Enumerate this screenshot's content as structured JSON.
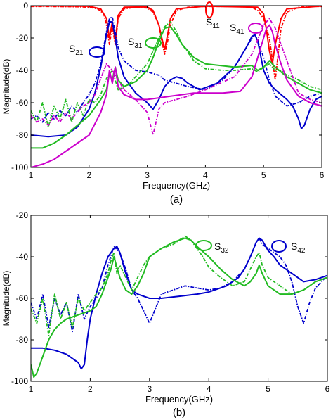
{
  "chart_data": [
    {
      "panel_label": "(a)",
      "type": "line",
      "xlabel": "Frequency(GHz)",
      "ylabel": "Magnitude(dB)",
      "xlim": [
        1,
        6
      ],
      "ylim": [
        -100,
        0
      ],
      "xticks": [
        "1",
        "2",
        "3",
        "4",
        "5",
        "6"
      ],
      "yticks": [
        "0",
        "-20",
        "-40",
        "-60",
        "-80",
        "-100"
      ],
      "grid": false,
      "annotations": [
        {
          "label": "S",
          "sub": "11",
          "series": "S11"
        },
        {
          "label": "S",
          "sub": "21",
          "series": "S21"
        },
        {
          "label": "S",
          "sub": "31",
          "series": "S31"
        },
        {
          "label": "S",
          "sub": "41",
          "series": "S41"
        }
      ],
      "series": [
        {
          "id": "S11",
          "style": "measured",
          "color": "#ff0000",
          "x": [
            1.0,
            1.2,
            1.5,
            1.8,
            2.0,
            2.15,
            2.25,
            2.3,
            2.35,
            2.4,
            2.45,
            2.5,
            2.6,
            2.8,
            3.0,
            3.1,
            3.2,
            3.25,
            3.3,
            3.35,
            3.4,
            3.5,
            3.7,
            4.0,
            4.5,
            4.8,
            4.9,
            5.0,
            5.1,
            5.15,
            5.2,
            5.25,
            5.3,
            5.4,
            5.6,
            5.8,
            6.0
          ],
          "y": [
            -0.5,
            -0.5,
            -0.6,
            -0.7,
            -1,
            -2,
            -5,
            -12,
            -24,
            -13,
            -24,
            -8,
            -2,
            -1,
            -1.5,
            -4,
            -12,
            -22,
            -30,
            -22,
            -12,
            -3,
            -1,
            -0.5,
            -0.5,
            -1,
            -3,
            -8,
            -20,
            -33,
            -46,
            -30,
            -14,
            -4,
            -1,
            -0.5,
            -0.5
          ]
        },
        {
          "id": "S11",
          "style": "simulated",
          "color": "#ff0000",
          "x": [
            1.0,
            1.5,
            2.0,
            2.2,
            2.3,
            2.35,
            2.4,
            2.45,
            2.5,
            2.6,
            3.0,
            3.1,
            3.2,
            3.25,
            3.3,
            3.35,
            3.4,
            3.5,
            4.0,
            4.9,
            5.0,
            5.05,
            5.1,
            5.15,
            5.2,
            5.3,
            5.4,
            6.0
          ],
          "y": [
            -0.2,
            -0.2,
            -0.4,
            -2,
            -8,
            -20,
            -10,
            -22,
            -6,
            -1,
            -0.8,
            -3,
            -12,
            -20,
            -27,
            -18,
            -8,
            -2,
            -0.3,
            -1,
            -5,
            -15,
            -28,
            -36,
            -24,
            -8,
            -2,
            -0.2
          ]
        },
        {
          "id": "S21",
          "style": "measured",
          "color": "#0000cc",
          "x": [
            1.0,
            1.1,
            1.2,
            1.3,
            1.4,
            1.5,
            1.6,
            1.7,
            1.8,
            1.9,
            2.0,
            2.1,
            2.2,
            2.25,
            2.3,
            2.35,
            2.4,
            2.45,
            2.5,
            2.6,
            2.8,
            3.0,
            3.1,
            3.2,
            3.3,
            3.5,
            3.7,
            4.0,
            4.3,
            4.5,
            4.7,
            4.8,
            4.85,
            4.9,
            5.0,
            5.1,
            5.2,
            5.4,
            5.6,
            5.8,
            6.0
          ],
          "y": [
            -70,
            -68,
            -72,
            -66,
            -70,
            -65,
            -68,
            -62,
            -66,
            -60,
            -55,
            -48,
            -36,
            -26,
            -16,
            -8,
            -7,
            -16,
            -26,
            -34,
            -40,
            -41,
            -42,
            -43,
            -46,
            -48,
            -50,
            -52,
            -46,
            -38,
            -26,
            -20,
            -18,
            -21,
            -32,
            -46,
            -56,
            -62,
            -60,
            -56,
            -54
          ]
        },
        {
          "id": "S21",
          "style": "simulated",
          "color": "#0000cc",
          "x": [
            1.0,
            1.3,
            1.6,
            1.8,
            2.0,
            2.1,
            2.2,
            2.25,
            2.3,
            2.35,
            2.4,
            2.45,
            2.5,
            2.6,
            2.8,
            3.0,
            3.1,
            3.2,
            3.3,
            3.4,
            3.5,
            3.6,
            3.7,
            3.9,
            4.2,
            4.5,
            4.7,
            4.8,
            4.85,
            4.9,
            5.0,
            5.1,
            5.2,
            5.4,
            5.5,
            5.6,
            5.65,
            5.7,
            5.8,
            5.9,
            6.0
          ],
          "y": [
            -80,
            -81,
            -80,
            -75,
            -64,
            -54,
            -38,
            -28,
            -18,
            -10,
            -10,
            -20,
            -32,
            -44,
            -54,
            -60,
            -64,
            -58,
            -50,
            -46,
            -44,
            -45,
            -48,
            -52,
            -48,
            -38,
            -26,
            -19,
            -18,
            -22,
            -40,
            -48,
            -52,
            -58,
            -62,
            -70,
            -76,
            -74,
            -64,
            -58,
            -56
          ]
        },
        {
          "id": "S31",
          "style": "measured",
          "color": "#22bb22",
          "x": [
            1.0,
            1.1,
            1.2,
            1.3,
            1.4,
            1.5,
            1.6,
            1.7,
            1.8,
            1.9,
            2.0,
            2.1,
            2.2,
            2.3,
            2.4,
            2.5,
            2.6,
            2.7,
            2.8,
            2.9,
            3.0,
            3.1,
            3.2,
            3.3,
            3.4,
            3.5,
            3.6,
            3.8,
            4.0,
            4.3,
            4.5,
            4.8,
            4.9,
            5.0,
            5.1,
            5.2,
            5.3,
            5.4,
            5.5,
            5.6,
            5.8,
            6.0
          ],
          "y": [
            -65,
            -72,
            -60,
            -75,
            -62,
            -70,
            -58,
            -72,
            -60,
            -68,
            -58,
            -60,
            -55,
            -45,
            -40,
            -52,
            -50,
            -48,
            -44,
            -40,
            -36,
            -28,
            -20,
            -13,
            -10,
            -16,
            -24,
            -34,
            -39,
            -40,
            -40,
            -39,
            -41,
            -38,
            -36,
            -40,
            -40,
            -43,
            -44,
            -46,
            -50,
            -52
          ]
        },
        {
          "id": "S31",
          "style": "simulated",
          "color": "#22bb22",
          "x": [
            1.0,
            1.2,
            1.4,
            1.6,
            1.8,
            2.0,
            2.2,
            2.3,
            2.35,
            2.4,
            2.45,
            2.5,
            2.6,
            2.8,
            3.0,
            3.1,
            3.2,
            3.3,
            3.4,
            3.5,
            3.6,
            3.8,
            4.0,
            4.5,
            4.8,
            4.9,
            5.0,
            5.1,
            5.2,
            5.4,
            5.6,
            5.8,
            6.0
          ],
          "y": [
            -88,
            -88,
            -85,
            -80,
            -74,
            -68,
            -58,
            -52,
            -42,
            -46,
            -38,
            -46,
            -50,
            -47,
            -40,
            -32,
            -22,
            -14,
            -13,
            -18,
            -24,
            -32,
            -36,
            -38,
            -37,
            -40,
            -38,
            -34,
            -38,
            -44,
            -48,
            -52,
            -54
          ]
        },
        {
          "id": "S41",
          "style": "measured",
          "color": "#cc00cc",
          "x": [
            1.0,
            1.1,
            1.2,
            1.3,
            1.4,
            1.5,
            1.6,
            1.7,
            1.8,
            1.9,
            2.0,
            2.1,
            2.2,
            2.3,
            2.4,
            2.5,
            2.6,
            2.8,
            3.0,
            3.1,
            3.2,
            3.3,
            3.5,
            3.7,
            4.0,
            4.5,
            4.8,
            5.0,
            5.1,
            5.2,
            5.3,
            5.4,
            5.5,
            5.6,
            5.8,
            6.0
          ],
          "y": [
            -68,
            -72,
            -70,
            -74,
            -68,
            -72,
            -66,
            -70,
            -66,
            -62,
            -60,
            -55,
            -45,
            -36,
            -40,
            -46,
            -52,
            -58,
            -66,
            -80,
            -64,
            -60,
            -58,
            -56,
            -52,
            -44,
            -30,
            -12,
            -8,
            -14,
            -24,
            -34,
            -44,
            -54,
            -58,
            -60
          ]
        },
        {
          "id": "S41",
          "style": "simulated",
          "color": "#cc00cc",
          "x": [
            1.0,
            1.2,
            1.4,
            1.6,
            1.8,
            2.0,
            2.2,
            2.3,
            2.35,
            2.4,
            2.45,
            2.5,
            2.6,
            2.8,
            3.0,
            3.2,
            3.4,
            3.6,
            3.8,
            4.0,
            4.3,
            4.6,
            4.8,
            4.9,
            5.0,
            5.05,
            5.1,
            5.15,
            5.2,
            5.3,
            5.4,
            5.6,
            5.8,
            6.0
          ],
          "y": [
            -100,
            -98,
            -95,
            -90,
            -85,
            -80,
            -66,
            -55,
            -40,
            -48,
            -38,
            -50,
            -55,
            -58,
            -58,
            -57,
            -56,
            -55,
            -54,
            -54,
            -54,
            -53,
            -44,
            -32,
            -20,
            -14,
            -12,
            -16,
            -24,
            -36,
            -46,
            -56,
            -60,
            -62
          ]
        }
      ]
    },
    {
      "panel_label": "(b)",
      "type": "line",
      "xlabel": "Frequency(GHz)",
      "ylabel": "Magnitude(dB)",
      "xlim": [
        1,
        6
      ],
      "ylim": [
        -100,
        -20
      ],
      "xticks": [
        "1",
        "2",
        "3",
        "4",
        "5",
        "6"
      ],
      "yticks": [
        "-20",
        "-40",
        "-60",
        "-80",
        "-100"
      ],
      "grid": false,
      "annotations": [
        {
          "label": "S",
          "sub": "32",
          "series": "S32"
        },
        {
          "label": "S",
          "sub": "42",
          "series": "S42"
        }
      ],
      "series": [
        {
          "id": "S42",
          "style": "measured",
          "color": "#0000cc",
          "x": [
            1.0,
            1.1,
            1.2,
            1.3,
            1.4,
            1.5,
            1.6,
            1.7,
            1.8,
            1.9,
            2.0,
            2.1,
            2.2,
            2.3,
            2.4,
            2.5,
            2.6,
            2.7,
            2.8,
            2.9,
            3.0,
            3.2,
            3.4,
            3.6,
            3.8,
            4.0,
            4.2,
            4.4,
            4.6,
            4.7,
            4.8,
            4.85,
            4.9,
            5.0,
            5.1,
            5.2,
            5.3,
            5.4,
            5.5,
            5.6,
            5.7,
            5.8,
            5.9,
            6.0
          ],
          "y": [
            -62,
            -70,
            -58,
            -74,
            -60,
            -68,
            -62,
            -76,
            -58,
            -70,
            -64,
            -60,
            -55,
            -44,
            -35,
            -38,
            -46,
            -56,
            -60,
            -66,
            -72,
            -58,
            -56,
            -54,
            -55,
            -56,
            -55,
            -52,
            -46,
            -40,
            -33,
            -31,
            -34,
            -36,
            -38,
            -40,
            -44,
            -52,
            -64,
            -72,
            -62,
            -55,
            -52,
            -49
          ]
        },
        {
          "id": "S42",
          "style": "simulated",
          "color": "#0000cc",
          "x": [
            1.0,
            1.1,
            1.2,
            1.4,
            1.6,
            1.7,
            1.8,
            1.85,
            1.9,
            1.95,
            2.0,
            2.1,
            2.2,
            2.3,
            2.4,
            2.45,
            2.5,
            2.6,
            2.7,
            2.8,
            3.0,
            3.2,
            3.5,
            3.8,
            4.0,
            4.3,
            4.5,
            4.6,
            4.7,
            4.8,
            4.85,
            4.9,
            5.0,
            5.1,
            5.2,
            5.4,
            5.6,
            5.8,
            6.0
          ],
          "y": [
            -84,
            -84,
            -84,
            -85,
            -87,
            -89,
            -91,
            -94,
            -92,
            -80,
            -70,
            -58,
            -48,
            -40,
            -36,
            -35,
            -38,
            -48,
            -56,
            -58,
            -60,
            -60,
            -59,
            -58,
            -57,
            -54,
            -50,
            -46,
            -40,
            -33,
            -31,
            -32,
            -37,
            -40,
            -44,
            -48,
            -52,
            -51,
            -49
          ]
        },
        {
          "id": "S32",
          "style": "measured",
          "color": "#22bb22",
          "x": [
            1.0,
            1.1,
            1.2,
            1.3,
            1.4,
            1.5,
            1.6,
            1.7,
            1.8,
            1.9,
            2.0,
            2.1,
            2.2,
            2.3,
            2.35,
            2.4,
            2.45,
            2.5,
            2.6,
            2.7,
            2.8,
            2.9,
            3.0,
            3.2,
            3.4,
            3.6,
            3.7,
            3.8,
            3.9,
            4.0,
            4.2,
            4.4,
            4.6,
            4.8,
            4.85,
            4.9,
            5.0,
            5.2,
            5.4,
            5.6,
            5.8,
            6.0
          ],
          "y": [
            -65,
            -72,
            -60,
            -78,
            -58,
            -70,
            -62,
            -74,
            -60,
            -66,
            -62,
            -58,
            -55,
            -48,
            -42,
            -38,
            -48,
            -44,
            -50,
            -56,
            -50,
            -44,
            -40,
            -36,
            -34,
            -30,
            -32,
            -36,
            -40,
            -45,
            -50,
            -54,
            -52,
            -40,
            -38,
            -44,
            -50,
            -54,
            -58,
            -56,
            -52,
            -50
          ]
        },
        {
          "id": "S32",
          "style": "simulated",
          "color": "#22bb22",
          "x": [
            1.0,
            1.05,
            1.1,
            1.2,
            1.3,
            1.4,
            1.5,
            1.6,
            1.8,
            2.0,
            2.1,
            2.2,
            2.3,
            2.35,
            2.4,
            2.45,
            2.5,
            2.6,
            2.7,
            2.8,
            2.9,
            3.0,
            3.2,
            3.4,
            3.6,
            3.7,
            3.8,
            4.0,
            4.2,
            4.4,
            4.6,
            4.7,
            4.8,
            4.85,
            4.9,
            5.0,
            5.2,
            5.4,
            5.6,
            5.8,
            6.0
          ],
          "y": [
            -92,
            -98,
            -96,
            -88,
            -80,
            -75,
            -72,
            -70,
            -68,
            -66,
            -64,
            -58,
            -50,
            -46,
            -40,
            -45,
            -50,
            -56,
            -58,
            -54,
            -48,
            -40,
            -36,
            -33,
            -31,
            -32,
            -35,
            -40,
            -46,
            -51,
            -54,
            -52,
            -48,
            -44,
            -48,
            -54,
            -58,
            -58,
            -56,
            -52,
            -50
          ]
        }
      ]
    }
  ]
}
